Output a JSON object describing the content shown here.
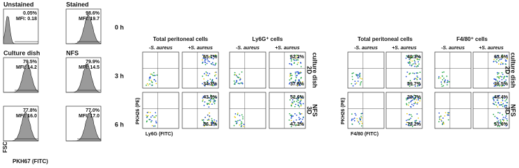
{
  "histograms": {
    "panels": [
      {
        "title": "Unstained",
        "percent": "0.05%",
        "mfi": "MFI: 0.18"
      },
      {
        "title": "Stained",
        "percent": "98.6%",
        "mfi": "MFI: 19.7"
      },
      {
        "title": "Culture dish",
        "percent": "79.5%",
        "mfi": "MFI: 14.2"
      },
      {
        "title": "NFS",
        "percent": "79.9%",
        "mfi": "MFI: 14.5"
      },
      {
        "percent": "77.8%",
        "mfi": "MFI: 16.0"
      },
      {
        "percent": "77.0%",
        "mfi": "MFI: 17.0"
      }
    ],
    "times": [
      "0 h",
      "3 h",
      "6 h"
    ],
    "y_label": "FSC",
    "x_label": "PKH67 (FITC)"
  },
  "scatter_groups": [
    {
      "headers": [
        "Total peritoneal cells",
        "Ly6G⁺ cells"
      ],
      "conditions": [
        "-S. aureus",
        "+S. aureus",
        "-S. aureus",
        "+S. aureus"
      ],
      "y_label": "PKH26 (PE)",
      "x_label": "Ly6G (FITC)",
      "rows": [
        {
          "label": [
            "2D",
            "culture dish"
          ],
          "total": {
            "upper": "65.7%",
            "lower": "34.3%"
          },
          "subset": {
            "upper": "62.2%",
            "lower": "37.8%"
          }
        },
        {
          "label": [
            "3D",
            "NFS"
          ],
          "total": {
            "upper": "43.9%",
            "lower": "56.1%"
          },
          "subset": {
            "upper": "52.6%",
            "lower": "47.3%"
          }
        }
      ]
    },
    {
      "headers": [
        "Total peritoneal cells",
        "F4/80⁺ cells"
      ],
      "conditions": [
        "-S. aureus",
        "+S. aureus",
        "-S. aureus",
        "+S. aureus"
      ],
      "y_label": "PKH26 (PE)",
      "x_label": "F4/80 (FITC)",
      "rows": [
        {
          "label": [
            "2D",
            "culture dish"
          ],
          "total": {
            "upper": "40.3%",
            "lower": "59.7%"
          },
          "subset": {
            "upper": "63.6%",
            "lower": "36.5%"
          }
        },
        {
          "label": [
            "3D",
            "NFS"
          ],
          "total": {
            "upper": "29.7%",
            "lower": "70.2%"
          },
          "subset": {
            "upper": "48.4%",
            "lower": "51.6%"
          }
        }
      ]
    }
  ]
}
